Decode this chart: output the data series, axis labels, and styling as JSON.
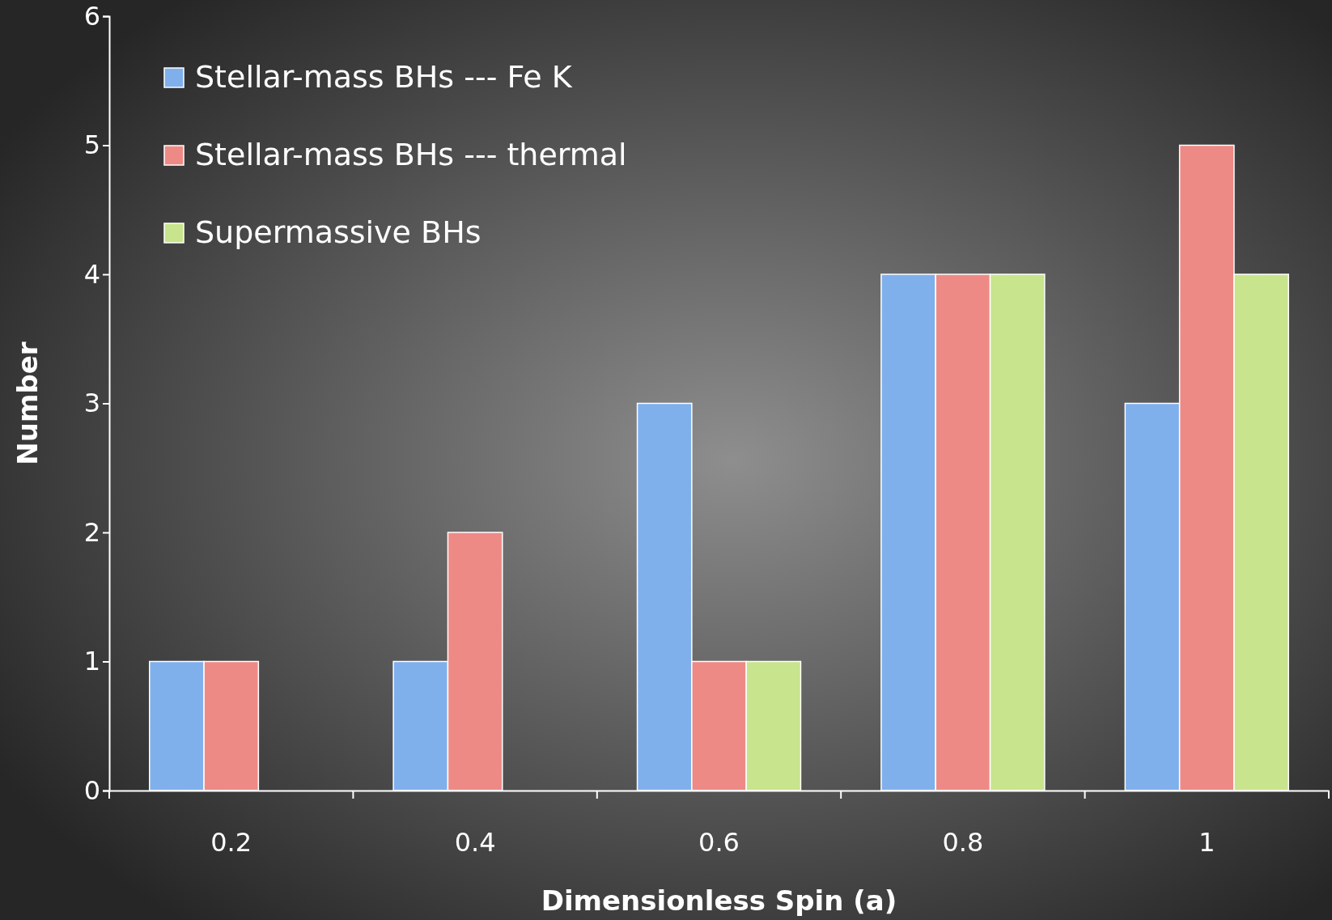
{
  "chart_data": {
    "type": "bar",
    "xlabel": "Dimensionless Spin (a)",
    "ylabel": "Number",
    "categories": [
      "0.2",
      "0.4",
      "0.6",
      "0.8",
      "1"
    ],
    "series": [
      {
        "name": "Stellar-mass BHs --- Fe K",
        "color": "#7fb0ec",
        "values": [
          1,
          1,
          3,
          4,
          3
        ]
      },
      {
        "name": "Stellar-mass BHs --- thermal",
        "color": "#ee8a86",
        "values": [
          1,
          2,
          1,
          4,
          5
        ]
      },
      {
        "name": "Supermassive BHs",
        "color": "#c8e48c",
        "values": [
          0,
          0,
          1,
          4,
          4
        ]
      }
    ],
    "ylim": [
      0,
      6
    ],
    "yticks": [
      0,
      1,
      2,
      3,
      4,
      5,
      6
    ],
    "grid": false,
    "legend": "top left"
  }
}
